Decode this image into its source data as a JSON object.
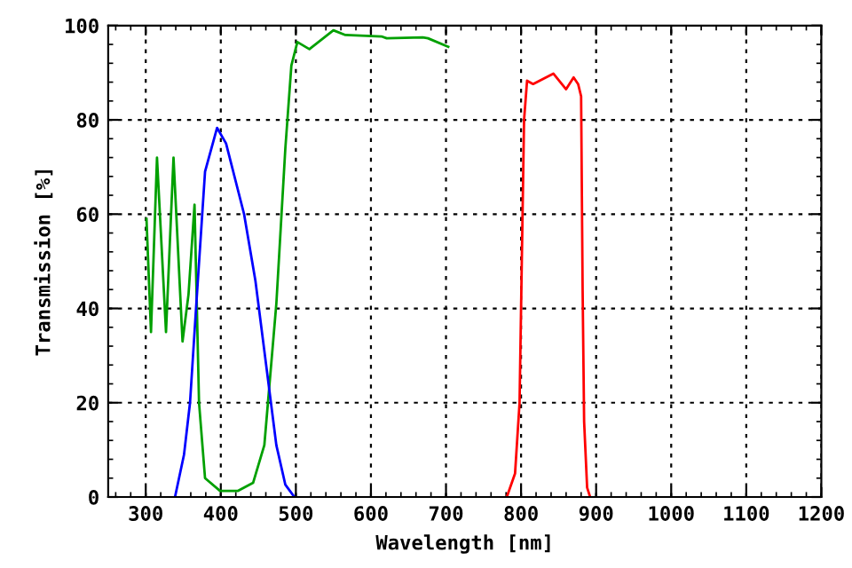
{
  "chart_data": {
    "type": "line",
    "xlabel": "Wavelength [nm]",
    "ylabel": "Transmission [%]",
    "xlim": [
      250,
      1200
    ],
    "ylim": [
      0,
      100
    ],
    "xticks": [
      300,
      400,
      500,
      600,
      700,
      800,
      900,
      1000,
      1100,
      1200
    ],
    "yticks": [
      0,
      20,
      40,
      60,
      80,
      100
    ],
    "grid": true,
    "legend": false,
    "marker": "none",
    "line_style": "solid",
    "series": [
      {
        "color": "#00a000",
        "x": [
          301,
          307,
          315,
          327,
          337,
          349,
          357,
          365,
          371,
          379,
          399,
          423,
          443,
          458,
          474,
          486,
          494,
          502,
          518,
          550,
          566,
          614,
          621,
          669,
          676,
          703
        ],
        "values": [
          59,
          35,
          72,
          35,
          72,
          33,
          43,
          62,
          20,
          4,
          1.3,
          1.3,
          3,
          11,
          41,
          74,
          91.5,
          96.5,
          95,
          99,
          98,
          97.7,
          97.3,
          97.5,
          97.3,
          95.5
        ]
      },
      {
        "color": "#0000ff",
        "x": [
          339,
          351,
          359,
          367,
          379,
          395,
          407,
          431,
          446,
          462,
          474,
          486,
          498
        ],
        "values": [
          0,
          9,
          20,
          40,
          69,
          78.3,
          75,
          60,
          46,
          26,
          11,
          2.6,
          0
        ]
      },
      {
        "color": "#ff0000",
        "x": [
          781,
          792,
          798,
          801,
          804,
          808,
          816,
          843,
          860,
          870,
          876,
          880,
          882,
          884,
          888,
          892
        ],
        "values": [
          0,
          5,
          20,
          50,
          80,
          88.3,
          87.6,
          89.8,
          86.5,
          89,
          87.6,
          85,
          44,
          16,
          2,
          0
        ]
      }
    ]
  }
}
